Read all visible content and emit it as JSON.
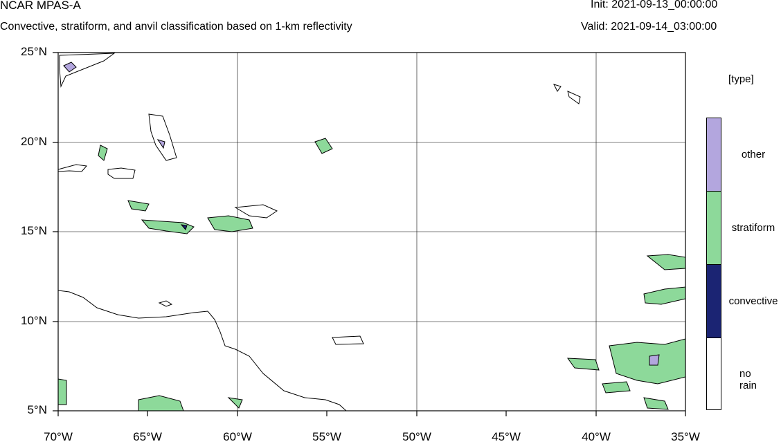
{
  "header": {
    "model": "NCAR MPAS-A",
    "description": "Convective, stratiform, and anvil classification based on 1-km reflectivity",
    "init": "Init: 2021-09-13_00:00:00",
    "valid": "Valid: 2021-09-14_03:00:00"
  },
  "map": {
    "lat_labels": [
      "25°N",
      "20°N",
      "15°N",
      "10°N",
      "5°N"
    ],
    "lon_labels": [
      "70°W",
      "65°W",
      "60°W",
      "55°W",
      "50°W",
      "45°W",
      "40°W",
      "35°W"
    ],
    "lat_range": [
      5,
      25
    ],
    "lon_range": [
      -70,
      -35
    ]
  },
  "legend": {
    "title": "[type]",
    "categories": [
      {
        "label": "other",
        "color": "#b3a6de"
      },
      {
        "label": "stratiform",
        "color": "#8dd99a"
      },
      {
        "label": "convective",
        "color": "#1b2473"
      },
      {
        "label": "no rain",
        "color": "#ffffff"
      }
    ]
  }
}
